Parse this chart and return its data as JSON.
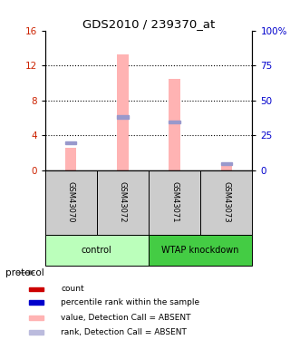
{
  "title": "GDS2010 / 239370_at",
  "samples": [
    "GSM43070",
    "GSM43072",
    "GSM43071",
    "GSM43073"
  ],
  "pink_values": [
    2.5,
    13.3,
    10.5,
    0.45
  ],
  "blue_values": [
    3.1,
    6.1,
    5.5,
    0.75
  ],
  "ylim_left": [
    0,
    16
  ],
  "ylim_right": [
    0,
    100
  ],
  "yticks_left": [
    0,
    4,
    8,
    12,
    16
  ],
  "yticks_right": [
    0,
    25,
    50,
    75,
    100
  ],
  "yticklabels_right": [
    "0",
    "25",
    "50",
    "75",
    "100%"
  ],
  "pink_color": "#ffb3b3",
  "blue_color": "#9999cc",
  "left_tick_color": "#cc2200",
  "right_tick_color": "#0000cc",
  "sample_area_color": "#cccccc",
  "group_info": [
    {
      "label": "control",
      "start": 0,
      "end": 2,
      "color": "#bbffbb"
    },
    {
      "label": "WTAP knockdown",
      "start": 2,
      "end": 4,
      "color": "#44cc44"
    }
  ],
  "legend_items": [
    {
      "color": "#cc0000",
      "label": "count"
    },
    {
      "color": "#0000cc",
      "label": "percentile rank within the sample"
    },
    {
      "color": "#ffb3b3",
      "label": "value, Detection Call = ABSENT"
    },
    {
      "color": "#bbbbdd",
      "label": "rank, Detection Call = ABSENT"
    }
  ],
  "bar_width": 0.22
}
